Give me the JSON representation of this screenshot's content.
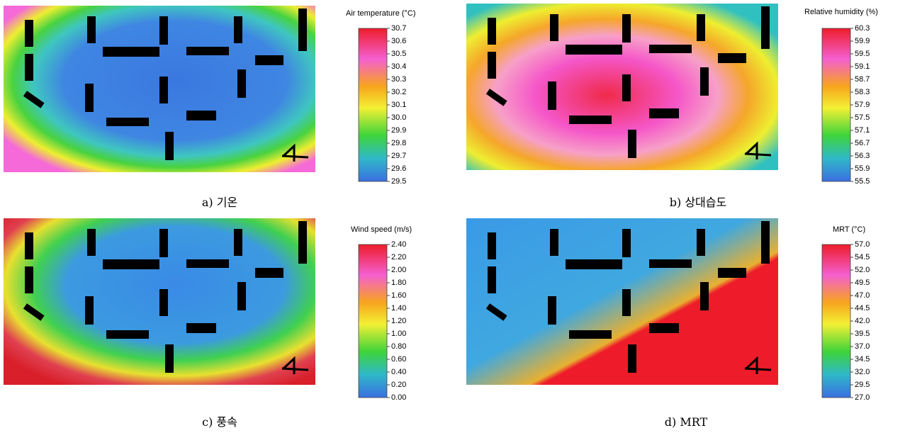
{
  "panels": [
    {
      "legend_title": "Air temperature (°C)",
      "ticks": [
        "30.7",
        "30.6",
        "30.5",
        "30.4",
        "30.3",
        "30.2",
        "30.1",
        "30.0",
        "29.9",
        "29.8",
        "29.7",
        "29.6",
        "29.5"
      ],
      "caption": "a) 기온"
    },
    {
      "legend_title": "Relative humidity (%)",
      "ticks": [
        "60.3",
        "59.9",
        "59.5",
        "59.1",
        "58.7",
        "58.3",
        "57.9",
        "57.5",
        "57.1",
        "56.7",
        "56.3",
        "55.9",
        "55.5"
      ],
      "caption": "b) 상대습도"
    },
    {
      "legend_title": "Wind speed (m/s)",
      "ticks": [
        "2.40",
        "2.20",
        "2.00",
        "1.80",
        "1.60",
        "1.40",
        "1.20",
        "1.00",
        "0.80",
        "0.60",
        "0.40",
        "0.20",
        "0.00"
      ],
      "caption": "c) 풍속"
    },
    {
      "legend_title": "MRT (°C)",
      "ticks": [
        "57.0",
        "54.5",
        "52.0",
        "49.5",
        "47.0",
        "44.5",
        "42.0",
        "39.5",
        "37.0",
        "34.5",
        "32.0",
        "29.5",
        "27.0"
      ],
      "caption": "d) MRT"
    }
  ]
}
